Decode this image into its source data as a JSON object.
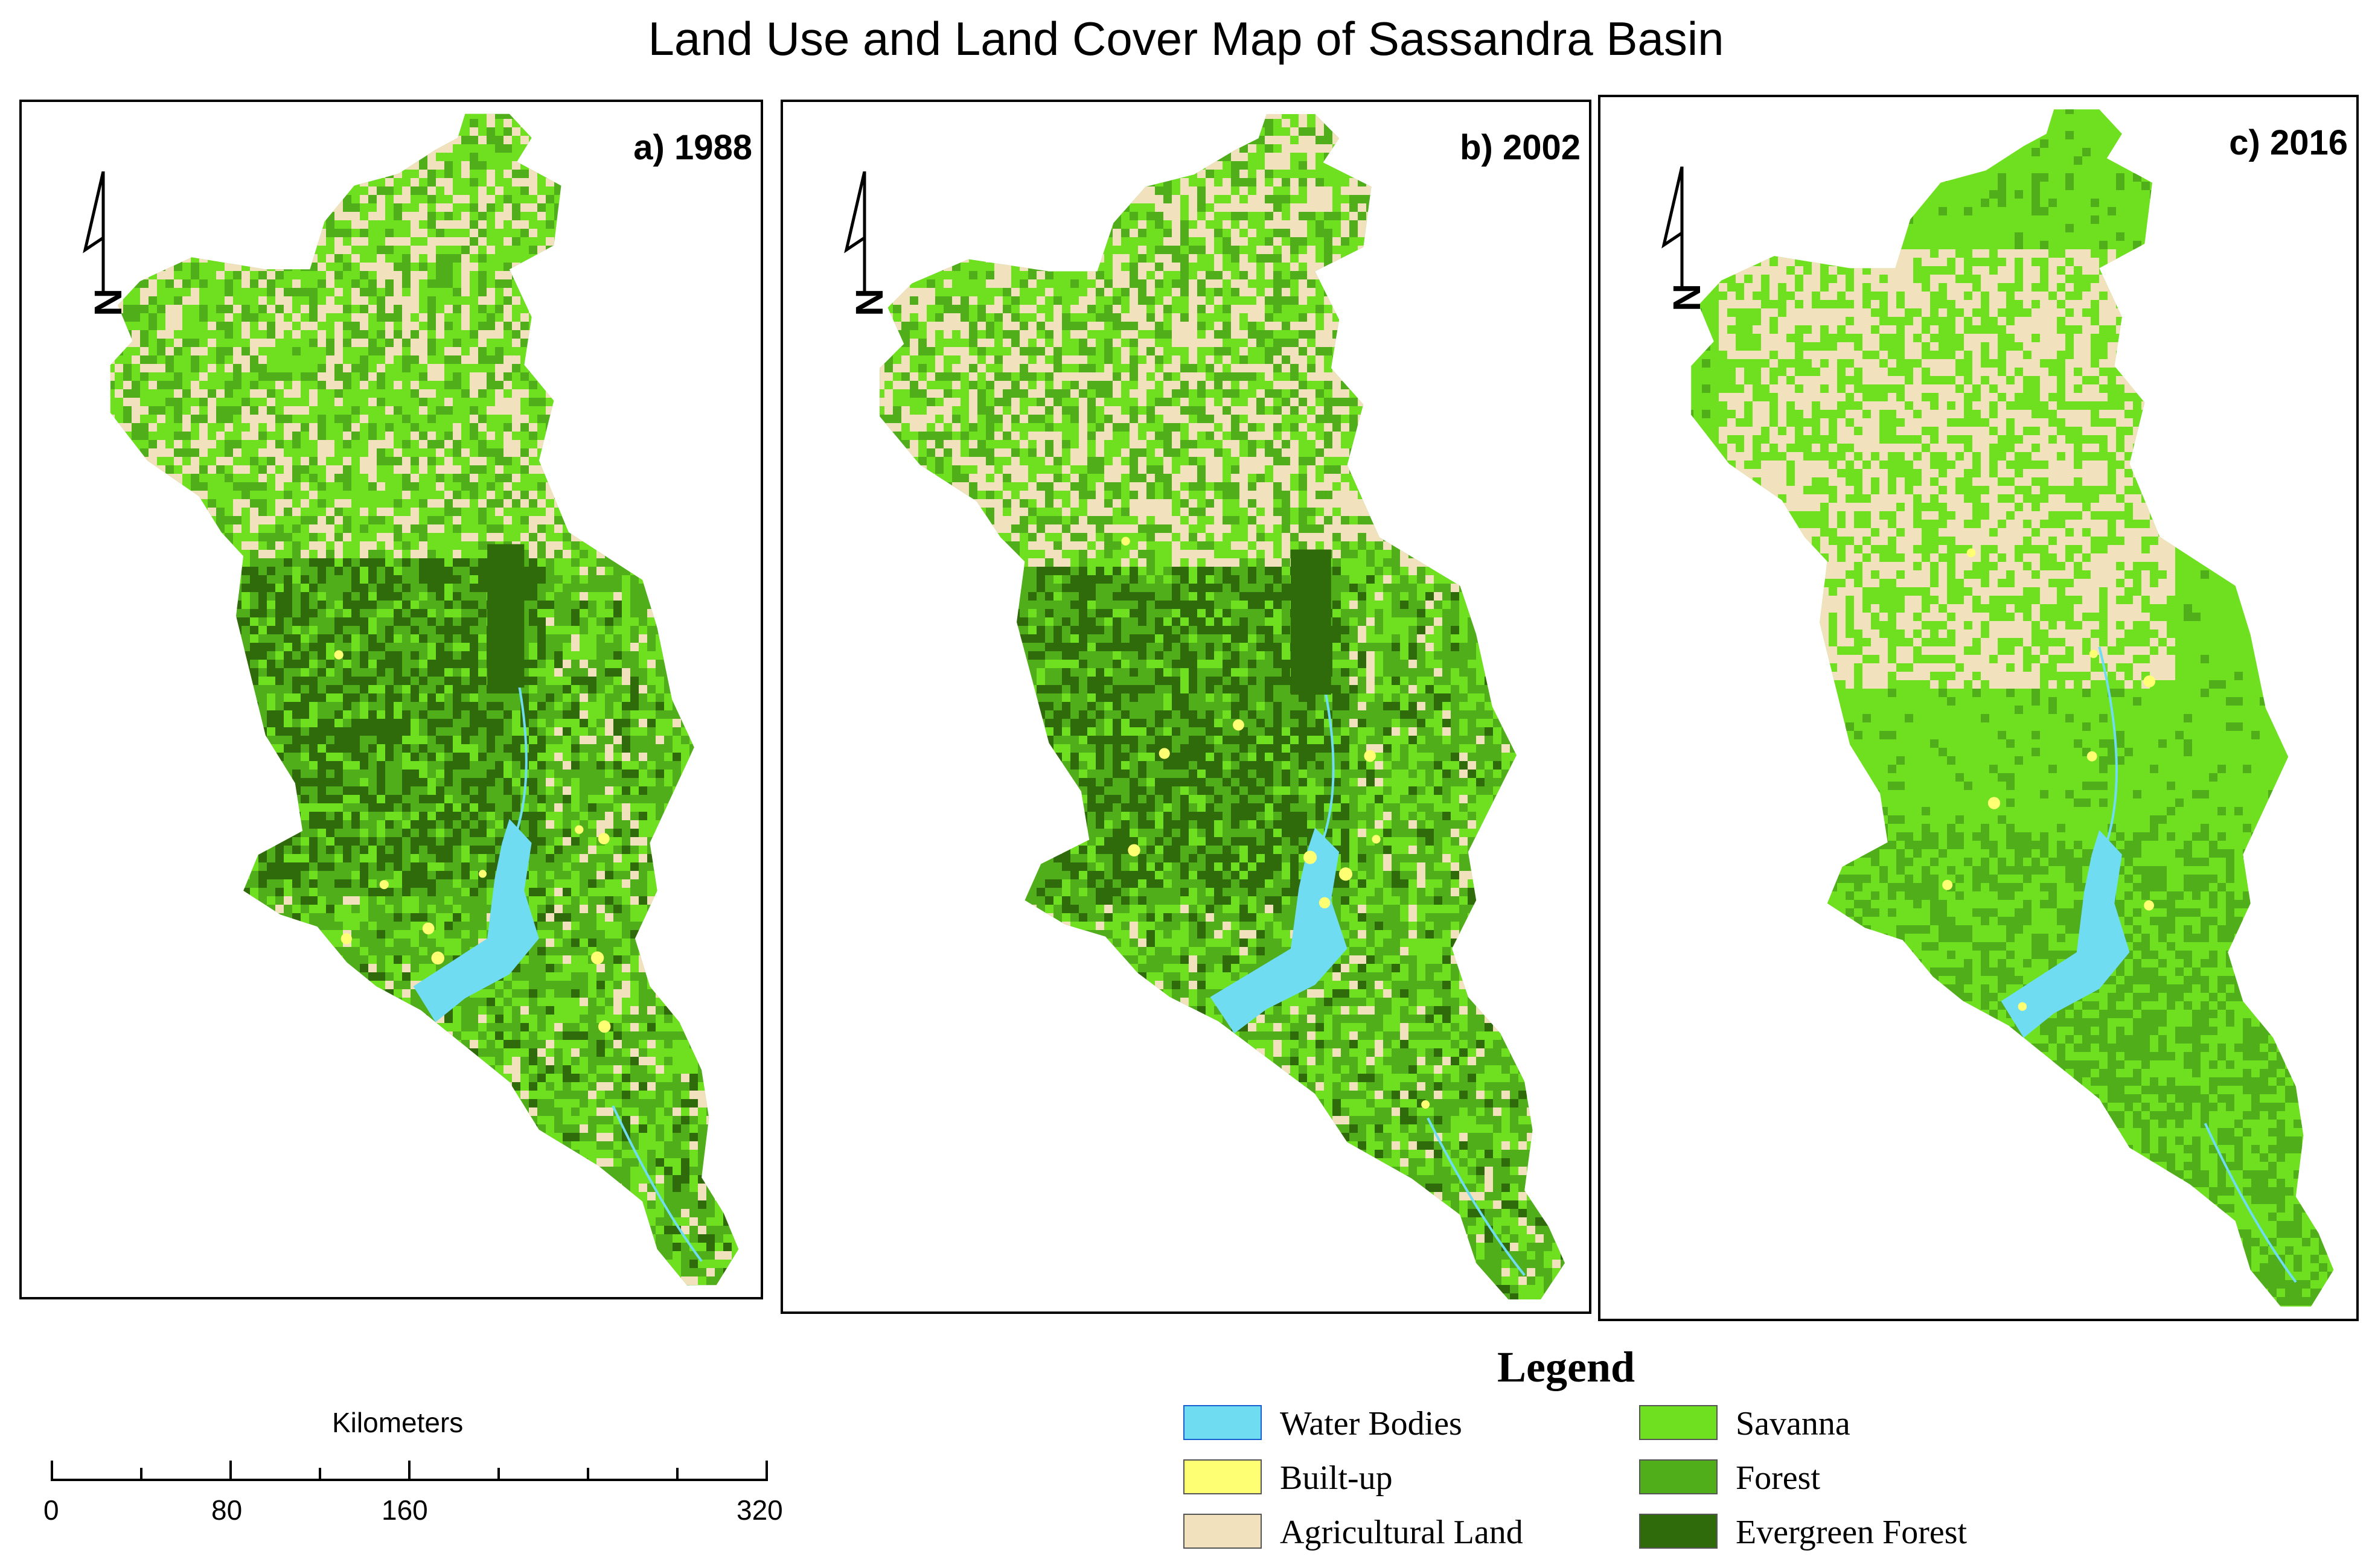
{
  "title": "Land Use and Land Cover Map of Sassandra Basin",
  "panels": [
    {
      "label": "a) 1988"
    },
    {
      "label": "b) 2002"
    },
    {
      "label": "c) 2016"
    }
  ],
  "north_arrow": {
    "letter": "N",
    "icon": "north-arrow-icon"
  },
  "scale_bar": {
    "title": "Kilometers",
    "ticks": [
      "0",
      "80",
      "160",
      "320"
    ]
  },
  "legend": {
    "title": "Legend",
    "items": [
      {
        "label": "Water Bodies",
        "color": "#6fdcf2"
      },
      {
        "label": "Built-up",
        "color": "#ffff73"
      },
      {
        "label": "Agricultural Land",
        "color": "#f1e2bd"
      },
      {
        "label": "Savanna",
        "color": "#6fe01f"
      },
      {
        "label": "Forest",
        "color": "#4fae1a"
      },
      {
        "label": "Evergreen Forest",
        "color": "#2f6b0a"
      }
    ]
  }
}
